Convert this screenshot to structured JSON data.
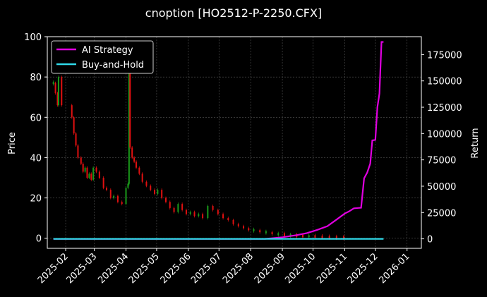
{
  "chart_data": {
    "type": "line",
    "title": "cnoption [HO2512-P-2250.CFX]",
    "ylabel_left": "Price",
    "ylabel_right": "Return",
    "x_ticks": [
      "2025-02",
      "2025-03",
      "2025-04",
      "2025-05",
      "2025-06",
      "2025-07",
      "2025-08",
      "2025-09",
      "2025-10",
      "2025-11",
      "2025-12",
      "2026-01"
    ],
    "y_left_ticks": [
      "0",
      "20",
      "40",
      "60",
      "80",
      "100"
    ],
    "y_right_ticks": [
      "0",
      "25000",
      "50000",
      "75000",
      "100000",
      "125000",
      "150000",
      "175000"
    ],
    "ylim_left": [
      -5,
      100
    ],
    "ylim_right": [
      -9000,
      192000
    ],
    "grid": true,
    "legend_position": "upper-left",
    "series": [
      {
        "name": "AI Strategy",
        "axis": "right",
        "color": "#e000e0",
        "x": [
          "2025-01-20",
          "2025-08-15",
          "2025-09-01",
          "2025-09-15",
          "2025-09-25",
          "2025-10-05",
          "2025-10-15",
          "2025-10-25",
          "2025-11-01",
          "2025-11-05",
          "2025-11-10",
          "2025-11-17",
          "2025-11-20",
          "2025-11-23",
          "2025-11-26",
          "2025-11-28",
          "2025-12-01",
          "2025-12-03",
          "2025-12-05",
          "2025-12-07",
          "2025-12-09"
        ],
        "values": [
          0,
          0,
          1500,
          3500,
          5500,
          8500,
          12000,
          19000,
          24000,
          26000,
          29000,
          29500,
          57500,
          63000,
          71500,
          93500,
          94000,
          125000,
          138000,
          187000,
          187000
        ]
      },
      {
        "name": "Buy-and-Hold",
        "axis": "right",
        "color": "#2fd9e8",
        "x": [
          "2025-01-20",
          "2025-12-09"
        ],
        "values": [
          0,
          0
        ]
      }
    ],
    "candles": {
      "up_color": "#1a9a1a",
      "down_color": "#e01010",
      "points": [
        {
          "d": "2025-01-20",
          "c": 77
        },
        {
          "d": "2025-01-22",
          "c": 72
        },
        {
          "d": "2025-01-24",
          "c": 66
        },
        {
          "d": "2025-01-25",
          "c": 80
        },
        {
          "d": "2025-01-28",
          "c": 66
        },
        {
          "d": "2025-02-07",
          "c": 60
        },
        {
          "d": "2025-02-09",
          "c": 52
        },
        {
          "d": "2025-02-11",
          "c": 46
        },
        {
          "d": "2025-02-13",
          "c": 40
        },
        {
          "d": "2025-02-16",
          "c": 37
        },
        {
          "d": "2025-02-18",
          "c": 33
        },
        {
          "d": "2025-02-20",
          "c": 35
        },
        {
          "d": "2025-02-22",
          "c": 30
        },
        {
          "d": "2025-02-24",
          "c": 32
        },
        {
          "d": "2025-02-26",
          "c": 29
        },
        {
          "d": "2025-02-28",
          "c": 35
        },
        {
          "d": "2025-03-03",
          "c": 33
        },
        {
          "d": "2025-03-06",
          "c": 30
        },
        {
          "d": "2025-03-10",
          "c": 25
        },
        {
          "d": "2025-03-13",
          "c": 24
        },
        {
          "d": "2025-03-17",
          "c": 20
        },
        {
          "d": "2025-03-20",
          "c": 21
        },
        {
          "d": "2025-03-24",
          "c": 18
        },
        {
          "d": "2025-03-28",
          "c": 17
        },
        {
          "d": "2025-04-01",
          "c": 25
        },
        {
          "d": "2025-04-03",
          "c": 27
        },
        {
          "d": "2025-04-04",
          "c": 90
        },
        {
          "d": "2025-04-05",
          "c": 45
        },
        {
          "d": "2025-04-07",
          "c": 40
        },
        {
          "d": "2025-04-09",
          "c": 38
        },
        {
          "d": "2025-04-11",
          "c": 35
        },
        {
          "d": "2025-04-14",
          "c": 32
        },
        {
          "d": "2025-04-17",
          "c": 28
        },
        {
          "d": "2025-04-21",
          "c": 26
        },
        {
          "d": "2025-04-25",
          "c": 24
        },
        {
          "d": "2025-04-29",
          "c": 22
        },
        {
          "d": "2025-05-02",
          "c": 24
        },
        {
          "d": "2025-05-06",
          "c": 20
        },
        {
          "d": "2025-05-10",
          "c": 18
        },
        {
          "d": "2025-05-14",
          "c": 15
        },
        {
          "d": "2025-05-18",
          "c": 13
        },
        {
          "d": "2025-05-22",
          "c": 17
        },
        {
          "d": "2025-05-26",
          "c": 14
        },
        {
          "d": "2025-05-30",
          "c": 12
        },
        {
          "d": "2025-06-03",
          "c": 13
        },
        {
          "d": "2025-06-07",
          "c": 11
        },
        {
          "d": "2025-06-11",
          "c": 12
        },
        {
          "d": "2025-06-15",
          "c": 10
        },
        {
          "d": "2025-06-20",
          "c": 16
        },
        {
          "d": "2025-06-25",
          "c": 14
        },
        {
          "d": "2025-06-30",
          "c": 12
        },
        {
          "d": "2025-07-05",
          "c": 10
        },
        {
          "d": "2025-07-10",
          "c": 9
        },
        {
          "d": "2025-07-15",
          "c": 7
        },
        {
          "d": "2025-07-20",
          "c": 6
        },
        {
          "d": "2025-07-25",
          "c": 5
        },
        {
          "d": "2025-07-30",
          "c": 4
        },
        {
          "d": "2025-08-04",
          "c": 4
        },
        {
          "d": "2025-08-10",
          "c": 3
        },
        {
          "d": "2025-08-16",
          "c": 3
        },
        {
          "d": "2025-08-22",
          "c": 2
        },
        {
          "d": "2025-08-28",
          "c": 2
        },
        {
          "d": "2025-09-03",
          "c": 1.5
        },
        {
          "d": "2025-09-09",
          "c": 1.5
        },
        {
          "d": "2025-09-15",
          "c": 1.2
        },
        {
          "d": "2025-09-21",
          "c": 1
        },
        {
          "d": "2025-09-27",
          "c": 1
        },
        {
          "d": "2025-10-03",
          "c": 0.8
        },
        {
          "d": "2025-10-10",
          "c": 0.6
        },
        {
          "d": "2025-10-17",
          "c": 0.5
        },
        {
          "d": "2025-10-24",
          "c": 0.4
        },
        {
          "d": "2025-10-31",
          "c": 0.3
        }
      ]
    }
  }
}
